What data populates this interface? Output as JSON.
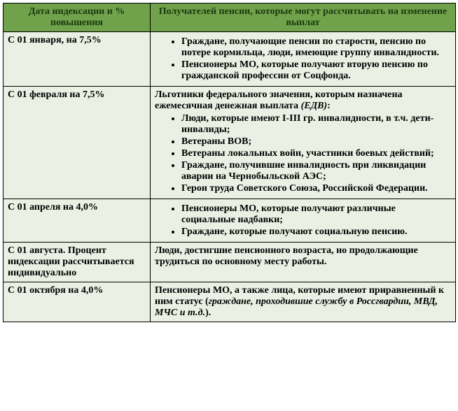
{
  "colors": {
    "header_bg": "#6fa24a",
    "row_bg": "#eaf1e4",
    "header_text": "#1a3a0f",
    "border": "#000000"
  },
  "header": {
    "col1": "Дата индексации и % повышения",
    "col2": "Получателей пенсии, которые могут рассчитывать на изменение выплат"
  },
  "rows": [
    {
      "date": "С 01 января, на 7,5%",
      "intro": "",
      "items": [
        "Граждане, получающие пенсии по старости, пенсию по потере кормильца, люди, имеющие группу инвалидности.",
        "Пенсионеры МО, которые получают вторую пенсию по гражданской профессии от Соцфонда."
      ]
    },
    {
      "date": "С 01 февраля на 7,5%",
      "intro_prefix": "Льготники федерального значения, которым назначена ежемесячная денежная выплата ",
      "intro_italic": "(ЕДВ)",
      "intro_suffix": ":",
      "items": [
        "Люди, которые имеют I-III гр. инвалидности, в т.ч. дети-инвалиды;",
        "Ветераны ВОВ;",
        "Ветераны локальных войн, участники боевых действий;",
        "Граждане, получившие инвалидность при ликвидации аварии на Чернобыльской АЭС;",
        "Герои труда Советского Союза, Российской Федерации."
      ]
    },
    {
      "date": "С 01 апреля на 4,0%",
      "intro": "",
      "items": [
        "Пенсионеры МО, которые получают различные социальные надбавки;",
        "Граждане, которые получают социальную пенсию."
      ]
    },
    {
      "date": "С 01 августа. Процент индексации рассчитывается индивидуально",
      "plain": "Люди, достигшие пенсионного возраста, но продолжающие трудиться по основному месту работы."
    },
    {
      "date": "С 01 октября на 4,0%",
      "plain_prefix": "Пенсионеры МО, а также лица, которые имеют приравненный к ним статус (",
      "plain_italic": "граждане, проходившие службу в Россгвардии, МВД, МЧС и т.д.",
      "plain_suffix": ")."
    }
  ]
}
